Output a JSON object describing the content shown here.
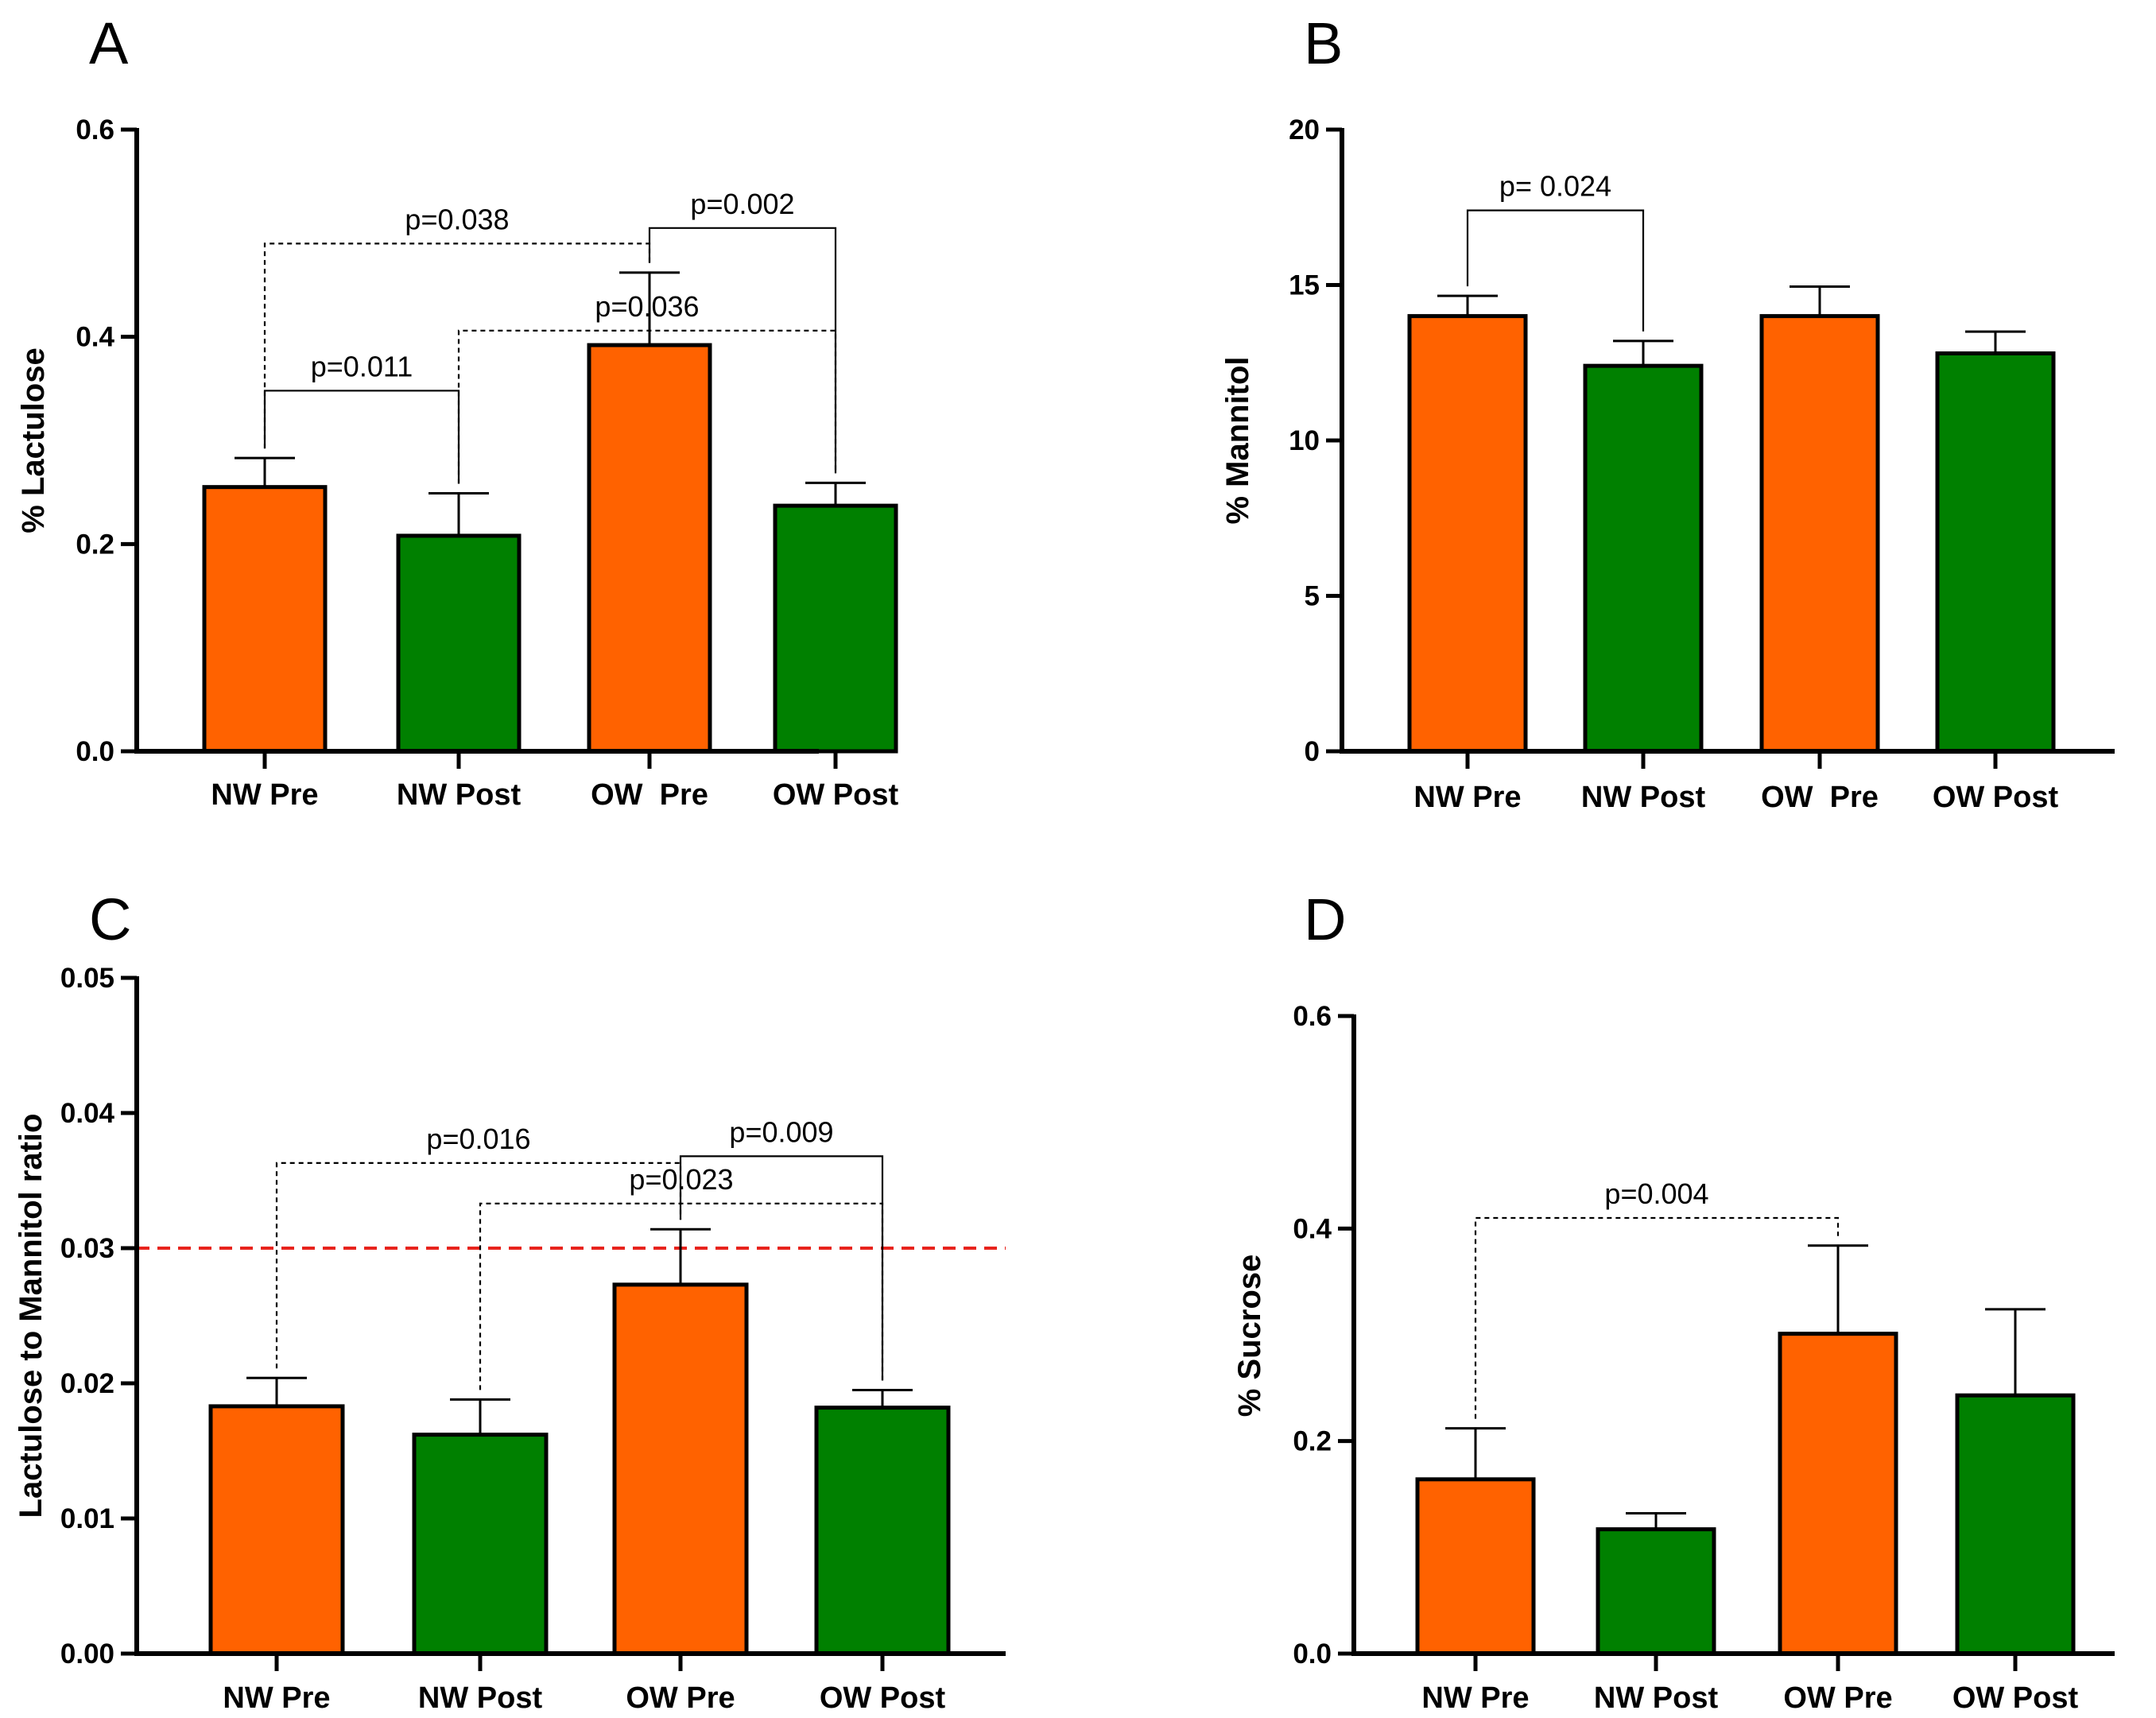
{
  "chart_data": [
    {
      "panel": "A",
      "type": "bar",
      "categories": [
        "NW Pre",
        "NW Post",
        "OW  Pre",
        "OW Post"
      ],
      "values": [
        0.255,
        0.208,
        0.392,
        0.237
      ],
      "errors": [
        0.028,
        0.041,
        0.07,
        0.022
      ],
      "ylabel": "% Lactulose",
      "ylim": [
        0,
        0.6
      ],
      "yticks": [
        0.0,
        0.2,
        0.4,
        0.6
      ],
      "ytick_labels": [
        "0.0",
        "0.2",
        "0.4",
        "0.6"
      ],
      "bar_colors": [
        "#ff6200",
        "#008000",
        "#ff6200",
        "#008000"
      ],
      "comparisons": [
        {
          "from": 0,
          "to": 2,
          "label": "p=0.038",
          "style": "dashed",
          "level": 0.49
        },
        {
          "from": 2,
          "to": 3,
          "label": "p=0.002",
          "style": "solid",
          "level": 0.505
        },
        {
          "from": 1,
          "to": 3,
          "label": "p=0.036",
          "style": "dashed",
          "level": 0.406
        },
        {
          "from": 0,
          "to": 1,
          "label": "p=0.011",
          "style": "solid",
          "level": 0.348
        }
      ]
    },
    {
      "panel": "B",
      "type": "bar",
      "categories": [
        "NW Pre",
        "NW Post",
        "OW  Pre",
        "OW Post"
      ],
      "values": [
        14.0,
        12.4,
        14.0,
        12.8
      ],
      "errors": [
        0.65,
        0.8,
        0.95,
        0.7
      ],
      "ylabel": "% Mannitol",
      "ylim": [
        0,
        20
      ],
      "yticks": [
        0,
        5,
        10,
        15,
        20
      ],
      "ytick_labels": [
        "0",
        "5",
        "10",
        "15",
        "20"
      ],
      "bar_colors": [
        "#ff6200",
        "#008000",
        "#ff6200",
        "#008000"
      ],
      "comparisons": [
        {
          "from": 0,
          "to": 1,
          "label": "p= 0.024",
          "style": "solid",
          "level": 17.4
        }
      ]
    },
    {
      "panel": "C",
      "type": "bar",
      "categories": [
        "NW Pre",
        "NW Post",
        "OW Pre",
        "OW Post"
      ],
      "values": [
        0.0183,
        0.0162,
        0.0273,
        0.0182
      ],
      "errors": [
        0.0021,
        0.0026,
        0.0041,
        0.0013
      ],
      "ylabel": "Lactulose to Mannitol ratio",
      "ylim": [
        0,
        0.05
      ],
      "yticks": [
        0.0,
        0.01,
        0.02,
        0.03,
        0.04,
        0.05
      ],
      "ytick_labels": [
        "0.00",
        "0.01",
        "0.02",
        "0.03",
        "0.04",
        "0.05"
      ],
      "bar_colors": [
        "#ff6200",
        "#008000",
        "#ff6200",
        "#008000"
      ],
      "reference_line": {
        "y": 0.03,
        "color": "#e8231d",
        "style": "dashed"
      },
      "comparisons": [
        {
          "from": 0,
          "to": 2,
          "label": "p=0.016",
          "style": "dashed",
          "level": 0.0363
        },
        {
          "from": 2,
          "to": 3,
          "label": "p=0.009",
          "style": "solid",
          "level": 0.0368
        },
        {
          "from": 1,
          "to": 3,
          "label": "p=0.023",
          "style": "dashed",
          "level": 0.0333
        }
      ]
    },
    {
      "panel": "D",
      "type": "bar",
      "categories": [
        "NW Pre",
        "NW Post",
        "OW Pre",
        "OW Post"
      ],
      "values": [
        0.164,
        0.117,
        0.301,
        0.243
      ],
      "errors": [
        0.048,
        0.015,
        0.083,
        0.081
      ],
      "ylabel": "% Sucrose",
      "ylim": [
        0,
        0.6
      ],
      "yticks": [
        0.0,
        0.2,
        0.4,
        0.6
      ],
      "ytick_labels": [
        "0.0",
        "0.2",
        "0.4",
        "0.6"
      ],
      "bar_colors": [
        "#ff6200",
        "#008000",
        "#ff6200",
        "#008000"
      ],
      "comparisons": [
        {
          "from": 0,
          "to": 2,
          "label": "p=0.004",
          "style": "dashed",
          "level": 0.41
        }
      ]
    }
  ]
}
